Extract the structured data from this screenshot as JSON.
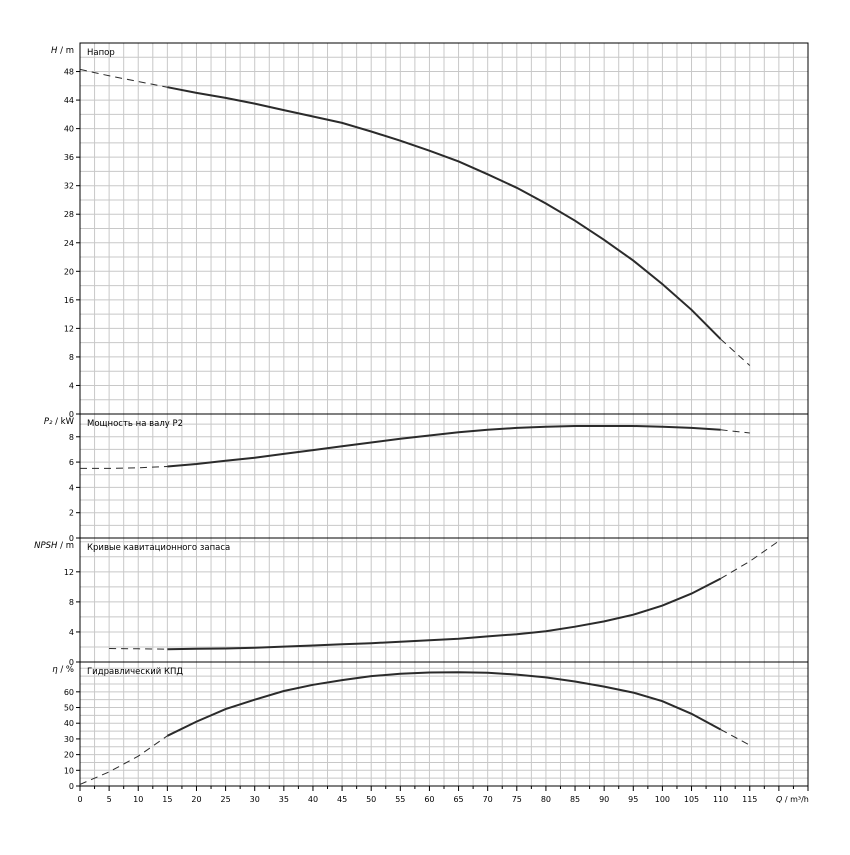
{
  "chart_data": {
    "type": "line",
    "shared_x": {
      "label_q": "Q",
      "label_unit": "m³/h",
      "ticks": [
        0,
        5,
        10,
        15,
        20,
        25,
        30,
        35,
        40,
        45,
        50,
        55,
        60,
        65,
        70,
        75,
        80,
        85,
        90,
        95,
        100,
        105,
        110,
        115
      ],
      "xlim": [
        0,
        125
      ],
      "grid": true
    },
    "panels": [
      {
        "id": "head",
        "title": "Напор",
        "ylabel_sym": "H",
        "ylabel_unit": "m",
        "ylim": [
          0,
          52
        ],
        "yticks": [
          0,
          4,
          8,
          12,
          16,
          20,
          24,
          28,
          32,
          36,
          40,
          44,
          48
        ],
        "series": [
          {
            "x": [
              0,
              5,
              10,
              15,
              20,
              25,
              30,
              35,
              40,
              45,
              50,
              55,
              60,
              65,
              70,
              75,
              80,
              85,
              90,
              95,
              100,
              105,
              110,
              115
            ],
            "y": [
              48.3,
              47.4,
              46.6,
              45.8,
              45.0,
              44.3,
              43.5,
              42.6,
              41.7,
              40.8,
              39.6,
              38.3,
              36.9,
              35.4,
              33.6,
              31.7,
              29.5,
              27.1,
              24.4,
              21.5,
              18.2,
              14.6,
              10.5,
              6.8
            ],
            "solid_range": [
              15,
              110
            ]
          }
        ]
      },
      {
        "id": "power",
        "title": "Мощность на валу P2",
        "ylabel_sym": "P₂",
        "ylabel_unit": "kW",
        "ylim": [
          0,
          9.8
        ],
        "yticks": [
          0,
          2,
          4,
          6,
          8
        ],
        "series": [
          {
            "x": [
              0,
              5,
              10,
              15,
              20,
              25,
              30,
              35,
              40,
              45,
              50,
              55,
              60,
              65,
              70,
              75,
              80,
              85,
              90,
              95,
              100,
              105,
              110,
              115
            ],
            "y": [
              5.5,
              5.5,
              5.55,
              5.65,
              5.85,
              6.1,
              6.35,
              6.65,
              6.95,
              7.25,
              7.55,
              7.85,
              8.1,
              8.35,
              8.55,
              8.7,
              8.8,
              8.85,
              8.85,
              8.85,
              8.8,
              8.7,
              8.55,
              8.3
            ],
            "solid_range": [
              15,
              110
            ]
          }
        ]
      },
      {
        "id": "npsh",
        "title": "Кривые кавитационного запаса",
        "ylabel_sym": "NPSH",
        "ylabel_unit": "m",
        "ylim": [
          0,
          16.5
        ],
        "yticks": [
          0,
          4,
          8,
          12
        ],
        "series": [
          {
            "x": [
              5,
              10,
              15,
              20,
              25,
              30,
              35,
              40,
              45,
              50,
              55,
              60,
              65,
              70,
              75,
              80,
              85,
              90,
              95,
              100,
              105,
              110,
              115,
              120
            ],
            "y": [
              1.8,
              1.75,
              1.7,
              1.75,
              1.8,
              1.9,
              2.05,
              2.2,
              2.35,
              2.5,
              2.7,
              2.9,
              3.1,
              3.4,
              3.7,
              4.1,
              4.7,
              5.4,
              6.3,
              7.5,
              9.1,
              11.1,
              13.4,
              16.1
            ],
            "solid_range": [
              15,
              110
            ]
          }
        ]
      },
      {
        "id": "efficiency",
        "title": "Гидравлический КПД",
        "ylabel_sym": "η",
        "ylabel_unit": "%",
        "ylim": [
          0,
          79
        ],
        "yticks": [
          0,
          10,
          20,
          30,
          40,
          50,
          60
        ],
        "series": [
          {
            "x": [
              0,
              5,
              10,
              15,
              20,
              25,
              30,
              35,
              40,
              45,
              50,
              55,
              60,
              65,
              70,
              75,
              80,
              85,
              90,
              95,
              100,
              105,
              110,
              115
            ],
            "y": [
              1,
              9,
              19,
              32,
              41,
              49,
              55,
              60.5,
              64.5,
              67.5,
              70,
              71.5,
              72.3,
              72.5,
              72.1,
              71,
              69.2,
              66.6,
              63.3,
              59.5,
              54,
              46,
              36,
              26
            ],
            "solid_range": [
              15,
              110
            ]
          }
        ]
      }
    ]
  }
}
